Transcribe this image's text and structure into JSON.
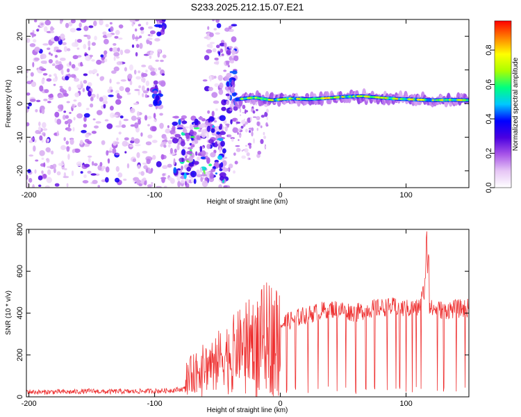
{
  "title": "S233.2025.212.15.07.E21",
  "chart_data": [
    {
      "type": "heatmap",
      "xlabel": "Height of straight line (km)",
      "ylabel": "Frequency (Hz)",
      "xlim": [
        -202,
        150
      ],
      "ylim": [
        -25,
        25
      ],
      "x_ticks": [
        -200,
        -100,
        0,
        100
      ],
      "y_ticks": [
        -20,
        -10,
        0,
        10,
        20
      ],
      "colorbar": {
        "label": "Normalized spectral amplitude",
        "range": [
          0,
          0.97
        ],
        "ticks": [
          0.0,
          0.2,
          0.4,
          0.6,
          0.8
        ],
        "tick_labels": [
          "0.0",
          "0.2",
          "0.4",
          "0.6",
          "0.8"
        ],
        "colormap": [
          "#ffffff",
          "#e6c6f5",
          "#a855e8",
          "#4b00e0",
          "#0000ff",
          "#00c8ff",
          "#00ff80",
          "#aaff00",
          "#ffff00",
          "#ff8000",
          "#ff0000"
        ]
      },
      "features": [
        {
          "kind": "noise",
          "x_range": [
            -202,
            -35
          ],
          "y_range": [
            -25,
            25
          ],
          "level": 0.15
        },
        {
          "kind": "blob",
          "x": -98,
          "y": 2.5,
          "level": 0.35
        },
        {
          "kind": "blob",
          "x": -95,
          "y": 23,
          "level": 0.3
        },
        {
          "kind": "cluster",
          "x_range": [
            -85,
            -45
          ],
          "y_range": [
            -24,
            -4
          ],
          "level": 0.3
        },
        {
          "kind": "feature",
          "x_range": [
            -42,
            -35
          ],
          "y_range": [
            -2,
            17
          ],
          "level": 0.25
        },
        {
          "kind": "band",
          "x_range": [
            -35,
            150
          ],
          "y": [
            1.2,
            1.8,
            1.0,
            1.5,
            1.3,
            1.6,
            2.0,
            2.2,
            1.8,
            1.4,
            1.2,
            1.0,
            1.1,
            1.0
          ],
          "level": 0.8
        }
      ]
    },
    {
      "type": "line",
      "xlabel": "Height of straight line (km)",
      "ylabel": "SNR (10 * v/v)",
      "xlim": [
        -202,
        150
      ],
      "ylim": [
        0,
        800
      ],
      "x_ticks": [
        -200,
        -100,
        0,
        100
      ],
      "y_ticks": [
        0,
        200,
        400,
        600,
        800
      ],
      "color": "#ee3030",
      "series": [
        {
          "x": [
            -202,
            -190,
            -180,
            -170,
            -160,
            -150,
            -140,
            -130,
            -120,
            -110,
            -100,
            -90,
            -80,
            -76,
            -75,
            -70,
            -60,
            -50,
            -40,
            -30,
            -20,
            -10,
            0,
            10,
            20,
            30,
            40,
            50,
            60,
            70,
            80,
            90,
            100,
            110,
            115,
            116,
            117,
            118,
            120,
            130,
            140,
            150
          ],
          "y": [
            25,
            22,
            24,
            23,
            25,
            28,
            24,
            26,
            25,
            27,
            28,
            30,
            35,
            40,
            105,
            115,
            150,
            180,
            215,
            250,
            285,
            315,
            345,
            370,
            390,
            405,
            420,
            415,
            400,
            420,
            425,
            430,
            420,
            425,
            520,
            700,
            800,
            450,
            420,
            415,
            420,
            425
          ]
        }
      ],
      "dropouts_x": [
        -18,
        -8,
        5,
        12,
        22,
        30,
        38,
        45,
        52,
        60,
        68,
        75,
        85,
        92,
        95,
        100,
        105,
        108,
        112,
        118,
        125,
        130,
        140,
        147
      ]
    }
  ]
}
